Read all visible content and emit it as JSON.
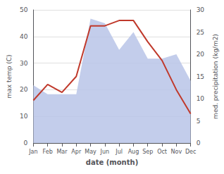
{
  "chart_data": {
    "type": "line",
    "categories": [
      "Jan",
      "Feb",
      "Mar",
      "Apr",
      "May",
      "Jun",
      "Jul",
      "Aug",
      "Sep",
      "Oct",
      "Nov",
      "Dec"
    ],
    "xlabel": "date (month)",
    "ylabel": "max temp (C)",
    "y2label": "med. precipitation (kg/m2)",
    "series": [
      {
        "type": "area",
        "color": "#b8c4e8",
        "axis": "y2",
        "values": [
          13,
          11,
          11,
          11,
          28,
          27,
          21,
          25,
          19,
          19,
          20,
          14
        ]
      },
      {
        "type": "line",
        "color": "#c0392b",
        "values": [
          16,
          22,
          19,
          25,
          44,
          44,
          46,
          46,
          38,
          31,
          20,
          11
        ]
      }
    ],
    "ylim": [
      0,
      50
    ],
    "yticks": [
      0,
      10,
      20,
      30,
      40,
      50
    ],
    "y2lim": [
      0,
      30
    ],
    "y2ticks": [
      0,
      5,
      10,
      15,
      20,
      25,
      30
    ],
    "grid": true
  }
}
